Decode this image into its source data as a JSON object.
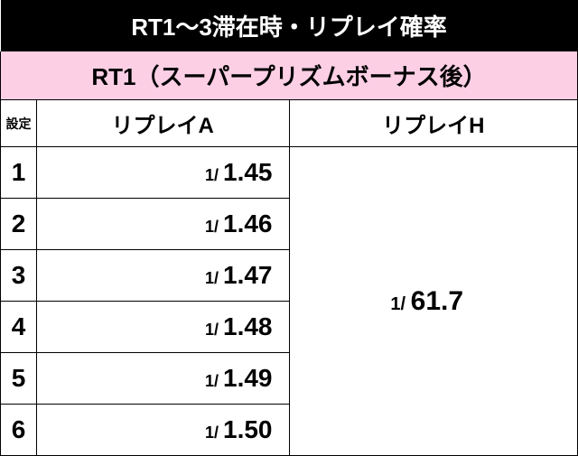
{
  "title": "RT1～3滞在時・リプレイ確率",
  "subtitle": "RT1（スーパープリズムボーナス後）",
  "headers": {
    "setting": "設定",
    "replay_a": "リプレイA",
    "replay_h": "リプレイH"
  },
  "value_prefix": "1/ ",
  "rows": [
    {
      "setting": "1",
      "replay_a": "1.45"
    },
    {
      "setting": "2",
      "replay_a": "1.46"
    },
    {
      "setting": "3",
      "replay_a": "1.47"
    },
    {
      "setting": "4",
      "replay_a": "1.48"
    },
    {
      "setting": "5",
      "replay_a": "1.49"
    },
    {
      "setting": "6",
      "replay_a": "1.50"
    }
  ],
  "replay_h_value": "61.7",
  "colors": {
    "title_bg": "#000000",
    "title_fg": "#ffffff",
    "subtitle_bg": "#fccfe5",
    "subtitle_fg": "#000000",
    "cell_bg": "#ffffff",
    "cell_fg": "#000000",
    "border": "#000000"
  },
  "font_sizes": {
    "title": 26,
    "subtitle": 26,
    "header": 24,
    "header_small": 14,
    "setting": 28,
    "prefix": 18,
    "value": 28,
    "h_prefix": 20,
    "h_value": 30
  }
}
